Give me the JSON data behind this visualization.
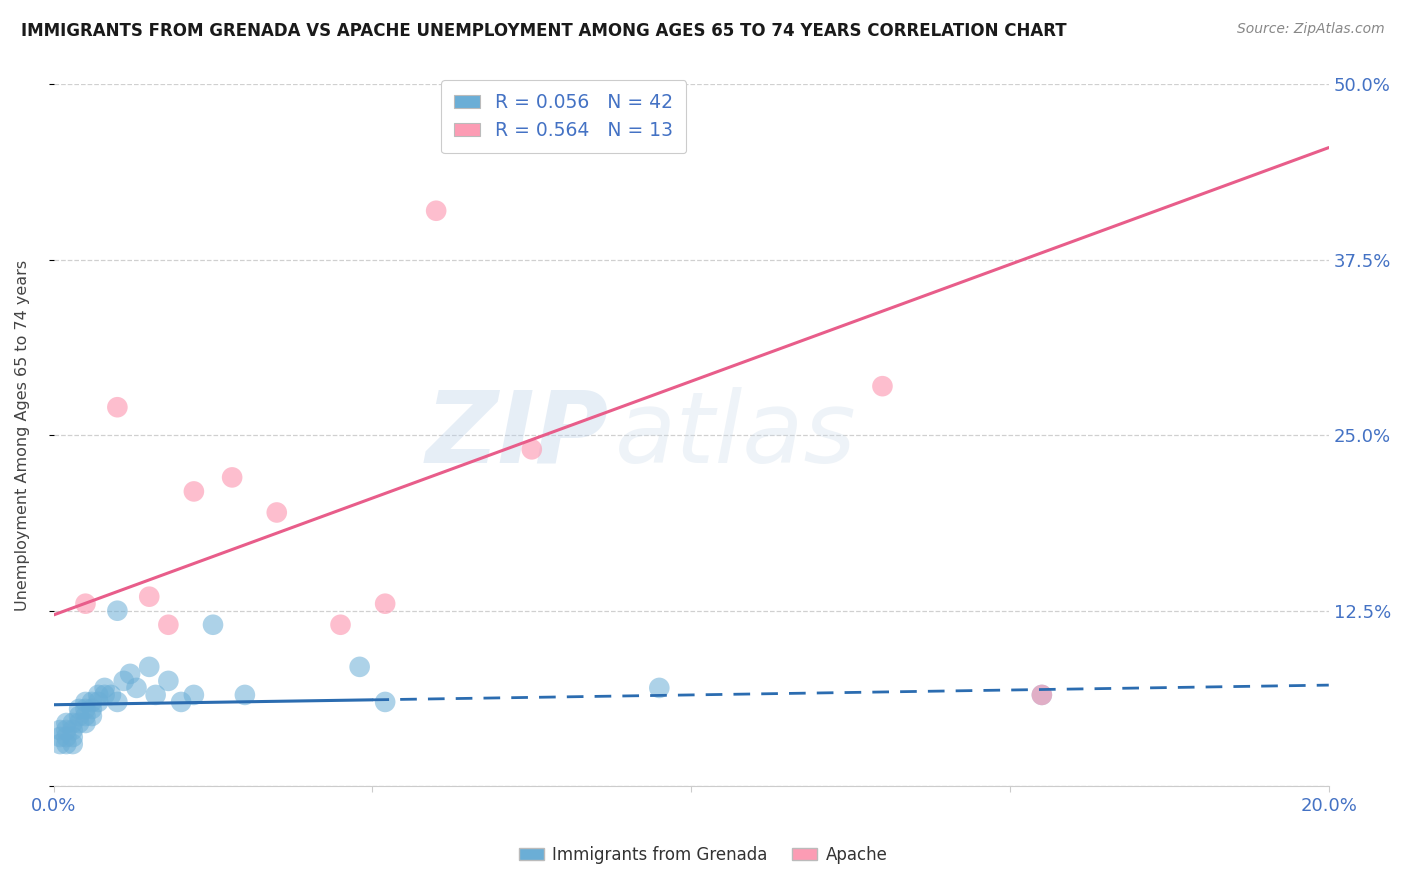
{
  "title": "IMMIGRANTS FROM GRENADA VS APACHE UNEMPLOYMENT AMONG AGES 65 TO 74 YEARS CORRELATION CHART",
  "source": "Source: ZipAtlas.com",
  "ylabel": "Unemployment Among Ages 65 to 74 years",
  "xlabel_blue": "Immigrants from Grenada",
  "xlabel_pink": "Apache",
  "xlim": [
    0.0,
    0.2
  ],
  "ylim": [
    0.0,
    0.5
  ],
  "yticks": [
    0.0,
    0.125,
    0.25,
    0.375,
    0.5
  ],
  "ytick_labels": [
    "",
    "12.5%",
    "25.0%",
    "37.5%",
    "50.0%"
  ],
  "xticks": [
    0.0,
    0.05,
    0.1,
    0.15,
    0.2
  ],
  "xtick_labels": [
    "0.0%",
    "",
    "",
    "",
    "20.0%"
  ],
  "blue_R": 0.056,
  "blue_N": 42,
  "pink_R": 0.564,
  "pink_N": 13,
  "blue_color": "#6baed6",
  "pink_color": "#fc9cb4",
  "blue_line_color": "#2b6cb0",
  "pink_line_color": "#e85d8a",
  "blue_scatter_x": [
    0.001,
    0.001,
    0.001,
    0.002,
    0.002,
    0.002,
    0.002,
    0.003,
    0.003,
    0.003,
    0.003,
    0.004,
    0.004,
    0.004,
    0.005,
    0.005,
    0.005,
    0.005,
    0.006,
    0.006,
    0.006,
    0.007,
    0.007,
    0.008,
    0.008,
    0.009,
    0.01,
    0.01,
    0.011,
    0.012,
    0.013,
    0.015,
    0.016,
    0.018,
    0.02,
    0.022,
    0.025,
    0.03,
    0.048,
    0.052,
    0.095,
    0.155
  ],
  "blue_scatter_y": [
    0.04,
    0.035,
    0.03,
    0.045,
    0.035,
    0.04,
    0.03,
    0.045,
    0.04,
    0.035,
    0.03,
    0.05,
    0.045,
    0.055,
    0.05,
    0.06,
    0.055,
    0.045,
    0.06,
    0.055,
    0.05,
    0.065,
    0.06,
    0.07,
    0.065,
    0.065,
    0.06,
    0.125,
    0.075,
    0.08,
    0.07,
    0.085,
    0.065,
    0.075,
    0.06,
    0.065,
    0.115,
    0.065,
    0.085,
    0.06,
    0.07,
    0.065
  ],
  "pink_scatter_x": [
    0.005,
    0.01,
    0.015,
    0.018,
    0.022,
    0.028,
    0.035,
    0.045,
    0.052,
    0.06,
    0.075,
    0.13,
    0.155
  ],
  "pink_scatter_y": [
    0.13,
    0.27,
    0.135,
    0.115,
    0.21,
    0.22,
    0.195,
    0.115,
    0.13,
    0.41,
    0.24,
    0.285,
    0.065
  ],
  "pink_line_x0": 0.0,
  "pink_line_y0": 0.122,
  "pink_line_x1": 0.2,
  "pink_line_y1": 0.455,
  "blue_line_solid_x0": 0.0,
  "blue_line_solid_x1": 0.05,
  "blue_line_dash_x0": 0.05,
  "blue_line_dash_x1": 0.2,
  "blue_line_y0": 0.058,
  "blue_line_y1": 0.072,
  "watermark_zip": "ZIP",
  "watermark_atlas": "atlas",
  "background_color": "#ffffff",
  "grid_color": "#d0d0d0"
}
